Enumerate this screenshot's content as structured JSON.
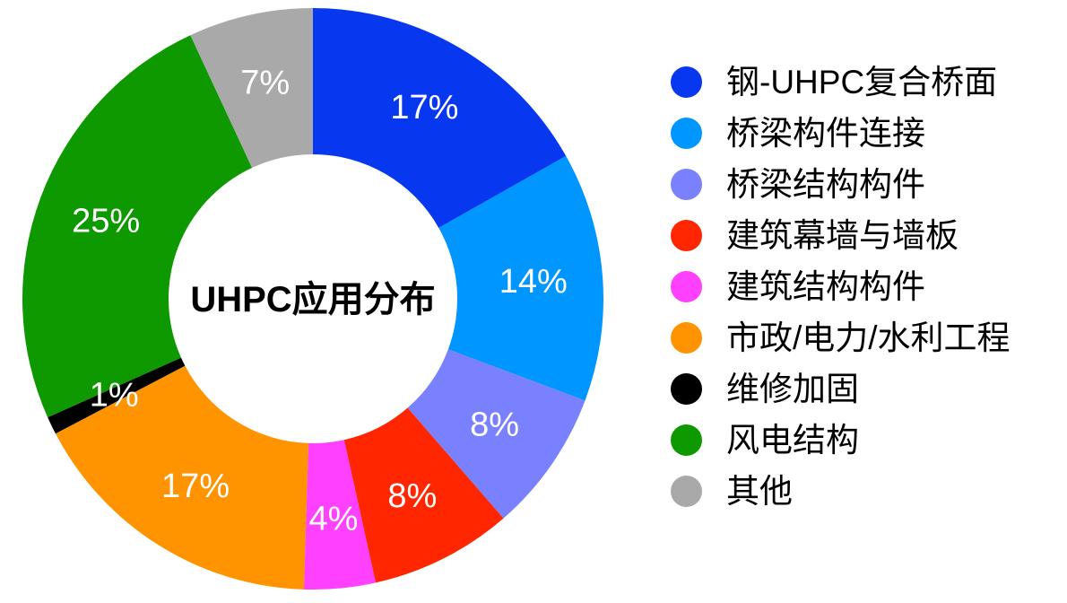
{
  "page": {
    "background": "#ffffff"
  },
  "chart_data": {
    "type": "pie",
    "subtype": "donut",
    "title": "UHPC应用分布",
    "title_position": "donut-center",
    "legend_position": "right",
    "direction": "clockwise",
    "start_angle_deg": 0,
    "slice_label_color": "#ffffff",
    "categories": [
      "钢-UHPC复合桥面",
      "桥梁构件连接",
      "桥梁结构构件",
      "建筑幕墙与墙板",
      "建筑结构构件",
      "市政/电力/水利工程",
      "维修加固",
      "风电结构",
      "其他"
    ],
    "values": [
      17,
      14,
      8,
      8,
      4,
      17,
      1,
      25,
      7
    ],
    "segments": [
      {
        "label": "钢-UHPC复合桥面",
        "value": 17,
        "display": "17%",
        "color": "#0837F0"
      },
      {
        "label": "桥梁构件连接",
        "value": 14,
        "display": "14%",
        "color": "#0096FF"
      },
      {
        "label": "桥梁结构构件",
        "value": 8,
        "display": "8%",
        "color": "#7A81FF"
      },
      {
        "label": "建筑幕墙与墙板",
        "value": 8,
        "display": "8%",
        "color": "#FF2600"
      },
      {
        "label": "建筑结构构件",
        "value": 4,
        "display": "4%",
        "color": "#FF40FF"
      },
      {
        "label": "市政/电力/水利工程",
        "value": 17,
        "display": "17%",
        "color": "#FF9300"
      },
      {
        "label": "维修加固",
        "value": 1,
        "display": "1%",
        "color": "#000000"
      },
      {
        "label": "风电结构",
        "value": 25,
        "display": "25%",
        "color": "#0E9900"
      },
      {
        "label": "其他",
        "value": 7,
        "display": "7%",
        "color": "#A9A9A9"
      }
    ]
  }
}
